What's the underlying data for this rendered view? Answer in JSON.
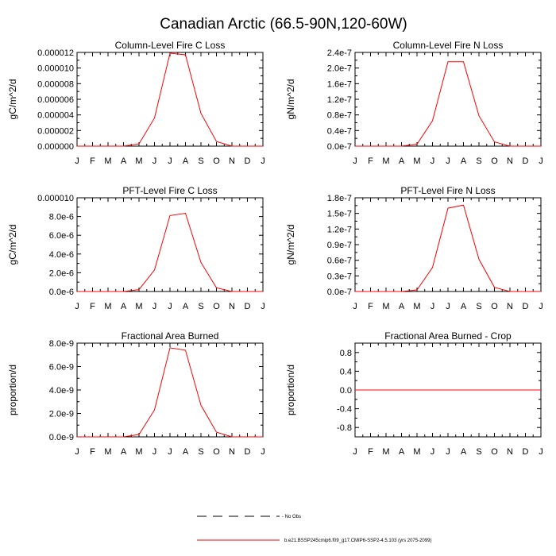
{
  "title": "Canadian Arctic (66.5-90N,120-60W)",
  "colors": {
    "series": "#ff0000",
    "axis": "#000000",
    "background": "#ffffff"
  },
  "month_labels": [
    "J",
    "F",
    "M",
    "A",
    "M",
    "J",
    "J",
    "A",
    "S",
    "O",
    "N",
    "D",
    "J"
  ],
  "legend": {
    "obs_label": "- No Obs",
    "model_label": "b.e21.BSSP245cmip6.f09_g17.CMIP6-SSP2-4.5.103 (yrs 2075-2099)"
  },
  "chart_data": [
    {
      "type": "line",
      "title": "Column-Level Fire C Loss",
      "ylabel": "gC/m^2/d",
      "xlabel": "",
      "ylim": [
        0,
        1.2e-05
      ],
      "yticks": [
        0,
        2e-06,
        4e-06,
        6e-06,
        8e-06,
        1e-05,
        1.2e-05
      ],
      "ytick_labels": [
        "0.000000",
        "0.000002",
        "0.000004",
        "0.000006",
        "0.000008",
        "0.000010",
        "0.000012"
      ],
      "x": [
        1,
        2,
        3,
        4,
        5,
        6,
        7,
        8,
        9,
        10,
        11,
        12,
        13
      ],
      "series": [
        {
          "name": "model",
          "values": [
            0,
            0,
            0,
            0,
            3e-07,
            3.6e-06,
            1.19e-05,
            1.17e-05,
            4.2e-06,
            6e-07,
            0,
            0,
            0
          ]
        }
      ]
    },
    {
      "type": "line",
      "title": "Column-Level Fire N Loss",
      "ylabel": "gN/m^2/d",
      "xlabel": "",
      "ylim": [
        0,
        2.4e-07
      ],
      "yticks": [
        0,
        4e-08,
        8e-08,
        1.2e-07,
        1.6e-07,
        2e-07,
        2.4e-07
      ],
      "ytick_labels": [
        "0.0e-7",
        "0.4e-7",
        "0.8e-7",
        "1.2e-7",
        "1.6e-7",
        "2.0e-7",
        "2.4e-7"
      ],
      "x": [
        1,
        2,
        3,
        4,
        5,
        6,
        7,
        8,
        9,
        10,
        11,
        12,
        13
      ],
      "series": [
        {
          "name": "model",
          "values": [
            0,
            0,
            0,
            0,
            5e-09,
            6.5e-08,
            2.16e-07,
            2.16e-07,
            7.8e-08,
            1.1e-08,
            0,
            0,
            0
          ]
        }
      ]
    },
    {
      "type": "line",
      "title": "PFT-Level Fire C Loss",
      "ylabel": "gC/m^2/d",
      "xlabel": "",
      "ylim": [
        0,
        1e-05
      ],
      "yticks": [
        0,
        2e-06,
        4e-06,
        6e-06,
        8e-06,
        1e-05
      ],
      "ytick_labels": [
        "0.0e-6",
        "2.0e-6",
        "4.0e-6",
        "6.0e-6",
        "8.0e-6",
        "0.000010"
      ],
      "x": [
        1,
        2,
        3,
        4,
        5,
        6,
        7,
        8,
        9,
        10,
        11,
        12,
        13
      ],
      "series": [
        {
          "name": "model",
          "values": [
            0,
            0,
            0,
            0,
            2e-07,
            2.3e-06,
            8.1e-06,
            8.35e-06,
            3.1e-06,
            4e-07,
            0,
            0,
            0
          ]
        }
      ]
    },
    {
      "type": "line",
      "title": "PFT-Level Fire N Loss",
      "ylabel": "gN/m^2/d",
      "xlabel": "",
      "ylim": [
        0,
        1.8e-07
      ],
      "yticks": [
        0,
        3e-08,
        6e-08,
        9e-08,
        1.2e-07,
        1.5e-07,
        1.8e-07
      ],
      "ytick_labels": [
        "0.0e-7",
        "0.3e-7",
        "0.6e-7",
        "0.9e-7",
        "1.2e-7",
        "1.5e-7",
        "1.8e-7"
      ],
      "x": [
        1,
        2,
        3,
        4,
        5,
        6,
        7,
        8,
        9,
        10,
        11,
        12,
        13
      ],
      "series": [
        {
          "name": "model",
          "values": [
            0,
            0,
            0,
            0,
            3e-09,
            4.6e-08,
            1.6e-07,
            1.66e-07,
            6.2e-08,
            8e-09,
            0,
            0,
            0
          ]
        }
      ]
    },
    {
      "type": "line",
      "title": "Fractional Area Burned",
      "ylabel": "proportion/d",
      "xlabel": "",
      "ylim": [
        0,
        8e-09
      ],
      "yticks": [
        0,
        2e-09,
        4e-09,
        6e-09,
        8e-09
      ],
      "ytick_labels": [
        "0.0e-9",
        "2.0e-9",
        "4.0e-9",
        "6.0e-9",
        "8.0e-9"
      ],
      "x": [
        1,
        2,
        3,
        4,
        5,
        6,
        7,
        8,
        9,
        10,
        11,
        12,
        13
      ],
      "series": [
        {
          "name": "model",
          "values": [
            0,
            0,
            0,
            0,
            2e-10,
            2.3e-09,
            7.6e-09,
            7.4e-09,
            2.7e-09,
            4e-10,
            0,
            0,
            0
          ]
        }
      ]
    },
    {
      "type": "line",
      "title": "Fractional Area Burned - Crop",
      "ylabel": "proportion/d",
      "xlabel": "",
      "ylim": [
        -1,
        1
      ],
      "yticks": [
        -0.8,
        -0.4,
        0,
        0.4,
        0.8
      ],
      "ytick_labels": [
        "-0.8",
        "-0.4",
        "0.0",
        "0.4",
        "0.8"
      ],
      "x": [
        1,
        2,
        3,
        4,
        5,
        6,
        7,
        8,
        9,
        10,
        11,
        12,
        13
      ],
      "series": [
        {
          "name": "model",
          "values": [
            0,
            0,
            0,
            0,
            0,
            0,
            0,
            0,
            0,
            0,
            0,
            0,
            0
          ]
        }
      ]
    }
  ]
}
